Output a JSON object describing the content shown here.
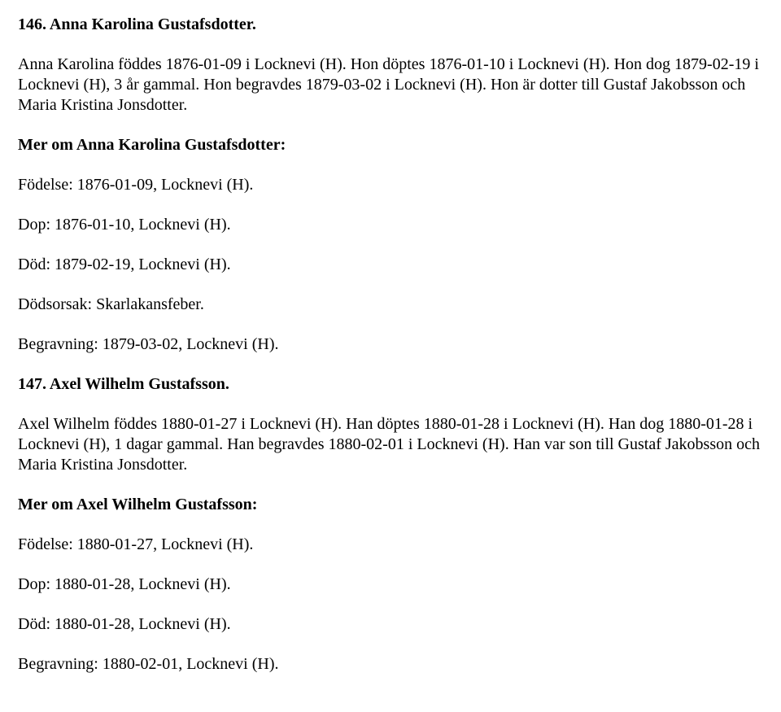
{
  "entries": [
    {
      "heading": "146. Anna Karolina Gustafsdotter.",
      "paragraphs": [
        "Anna Karolina föddes 1876-01-09 i Locknevi (H). Hon döptes 1876-01-10 i Locknevi (H). Hon dog 1879-02-19 i Locknevi (H), 3 år gammal. Hon begravdes 1879-03-02 i Locknevi (H). Hon är dotter till Gustaf Jakobsson och Maria Kristina Jonsdotter."
      ],
      "subheading": "Mer om Anna Karolina Gustafsdotter:",
      "details": [
        "Födelse: 1876-01-09, Locknevi (H).",
        "Dop: 1876-01-10, Locknevi (H).",
        "Död: 1879-02-19, Locknevi (H).",
        "Dödsorsak: Skarlakansfeber.",
        "Begravning: 1879-03-02, Locknevi (H)."
      ]
    },
    {
      "heading": "147. Axel Wilhelm Gustafsson.",
      "paragraphs": [
        "Axel Wilhelm föddes 1880-01-27 i Locknevi (H). Han döptes 1880-01-28 i Locknevi (H). Han dog 1880-01-28 i Locknevi (H), 1 dagar gammal. Han begravdes 1880-02-01 i Locknevi (H). Han var son till Gustaf Jakobsson och Maria Kristina Jonsdotter."
      ],
      "subheading": "Mer om Axel Wilhelm Gustafsson:",
      "details": [
        "Födelse: 1880-01-27, Locknevi (H).",
        "Dop: 1880-01-28, Locknevi (H).",
        "Död: 1880-01-28, Locknevi (H).",
        "Begravning: 1880-02-01, Locknevi (H)."
      ]
    }
  ]
}
